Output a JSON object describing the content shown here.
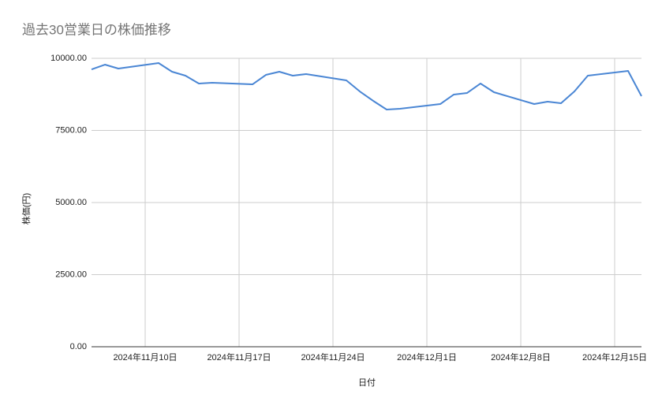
{
  "chart_data": {
    "type": "line",
    "title": "過去30営業日の株価推移",
    "x_label": "日付",
    "y_label": "株価(円)",
    "x": [
      "2024-11-06",
      "2024-11-07",
      "2024-11-08",
      "2024-11-11",
      "2024-11-12",
      "2024-11-13",
      "2024-11-14",
      "2024-11-15",
      "2024-11-18",
      "2024-11-19",
      "2024-11-20",
      "2024-11-21",
      "2024-11-22",
      "2024-11-25",
      "2024-11-26",
      "2024-11-27",
      "2024-11-28",
      "2024-11-29",
      "2024-12-02",
      "2024-12-03",
      "2024-12-04",
      "2024-12-05",
      "2024-12-06",
      "2024-12-09",
      "2024-12-10",
      "2024-12-11",
      "2024-12-12",
      "2024-12-13",
      "2024-12-16",
      "2024-12-17"
    ],
    "series": [
      {
        "name": "株価",
        "color": "#4a86d4",
        "values": [
          9617,
          9781,
          9645,
          9836,
          9536,
          9399,
          9126,
          9153,
          9098,
          9426,
          9536,
          9399,
          9454,
          9235,
          8852,
          8525,
          8224,
          8251,
          8415,
          8743,
          8798,
          9126,
          8825,
          8415,
          8497,
          8443,
          8852,
          9399,
          9563,
          8689
        ]
      }
    ],
    "xlim": [
      "2024-11-06",
      "2024-12-17"
    ],
    "xticks": [
      {
        "value": "2024-11-10",
        "label": "2024年11月10日"
      },
      {
        "value": "2024-11-17",
        "label": "2024年11月17日"
      },
      {
        "value": "2024-11-24",
        "label": "2024年11月24日"
      },
      {
        "value": "2024-12-01",
        "label": "2024年12月1日"
      },
      {
        "value": "2024-12-08",
        "label": "2024年12月8日"
      },
      {
        "value": "2024-12-15",
        "label": "2024年12月15日"
      }
    ],
    "ylim": [
      0,
      10000
    ],
    "yticks": [
      {
        "value": 0,
        "label": "0.00"
      },
      {
        "value": 2500,
        "label": "2500.00"
      },
      {
        "value": 5000,
        "label": "5000.00"
      },
      {
        "value": 7500,
        "label": "7500.00"
      },
      {
        "value": 10000,
        "label": "10000.00"
      }
    ],
    "grid": true
  }
}
